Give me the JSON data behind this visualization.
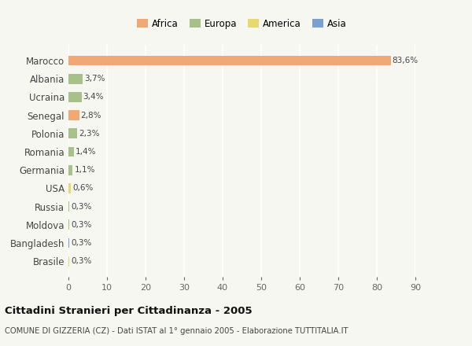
{
  "countries": [
    "Marocco",
    "Albania",
    "Ucraina",
    "Senegal",
    "Polonia",
    "Romania",
    "Germania",
    "USA",
    "Russia",
    "Moldova",
    "Bangladesh",
    "Brasile"
  ],
  "values": [
    83.6,
    3.7,
    3.4,
    2.8,
    2.3,
    1.4,
    1.1,
    0.6,
    0.3,
    0.3,
    0.3,
    0.3
  ],
  "labels": [
    "83,6%",
    "3,7%",
    "3,4%",
    "2,8%",
    "2,3%",
    "1,4%",
    "1,1%",
    "0,6%",
    "0,3%",
    "0,3%",
    "0,3%",
    "0,3%"
  ],
  "colors": [
    "#F0A875",
    "#A8C08A",
    "#A8C08A",
    "#F0A875",
    "#A8C08A",
    "#A8C08A",
    "#A8C08A",
    "#E8D870",
    "#A8C08A",
    "#A8C08A",
    "#7B9FD0",
    "#E8D870"
  ],
  "legend_labels": [
    "Africa",
    "Europa",
    "America",
    "Asia"
  ],
  "legend_colors": [
    "#F0A875",
    "#A8C08A",
    "#E8D870",
    "#7B9FD0"
  ],
  "title": "Cittadini Stranieri per Cittadinanza - 2005",
  "subtitle": "COMUNE DI GIZZERIA (CZ) - Dati ISTAT al 1° gennaio 2005 - Elaborazione TUTTITALIA.IT",
  "xlim": [
    0,
    90
  ],
  "xticks": [
    0,
    10,
    20,
    30,
    40,
    50,
    60,
    70,
    80,
    90
  ],
  "background_color": "#f7f7f2",
  "grid_color": "#ffffff",
  "bar_height": 0.55
}
